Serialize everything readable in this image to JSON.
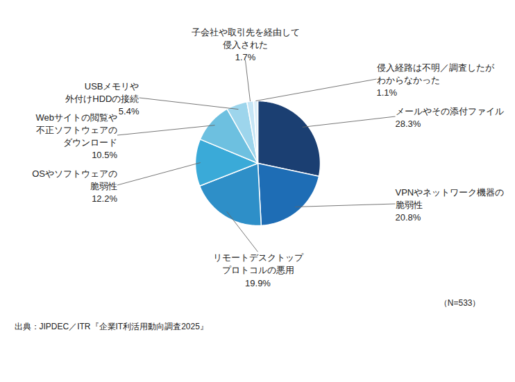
{
  "chart_data": {
    "type": "pie",
    "categories": [
      "メールやその添付ファイル",
      "VPNやネットワーク機器の\n脆弱性",
      "リモートデスクトップ\nプロトコルの悪用",
      "OSやソフトウェアの\n脆弱性",
      "Webサイトの閲覧や\n不正ソフトウェアの\nダウンロード",
      "USBメモリや\n外付けHDDの接続",
      "子会社や取引先を経由して\n侵入された",
      "侵入経路は不明／調査したが\nわからなかった"
    ],
    "values": [
      28.3,
      20.8,
      19.9,
      12.2,
      10.5,
      5.4,
      1.7,
      1.1
    ],
    "value_labels": [
      "28.3%",
      "20.8%",
      "19.9%",
      "12.2%",
      "10.5%",
      "5.4%",
      "1.7%",
      "1.1%"
    ],
    "colors": [
      "#1b3f72",
      "#1e6db5",
      "#2e8fc8",
      "#3aaad8",
      "#6dc0e0",
      "#9dd5ec",
      "#c5e5f5",
      "#dbeef8"
    ],
    "data_labels": true,
    "annotations": [
      "出典：JIPDEC／ITR『企業IT利活用動向調査2025』",
      "（N=533）"
    ]
  }
}
